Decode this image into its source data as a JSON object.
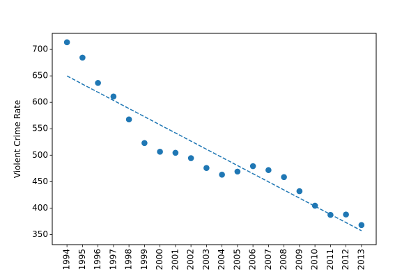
{
  "chart_data": {
    "type": "scatter",
    "title": "",
    "xlabel": "",
    "ylabel": "Violent Crime Rate",
    "x": [
      1994,
      1995,
      1996,
      1997,
      1998,
      1999,
      2000,
      2001,
      2002,
      2003,
      2004,
      2005,
      2006,
      2007,
      2008,
      2009,
      2010,
      2011,
      2012,
      2013
    ],
    "series": [
      {
        "type": "scatter",
        "values": [
          713.6,
          684.5,
          636.6,
          611.0,
          567.6,
          523.0,
          506.5,
          504.5,
          494.4,
          475.8,
          463.2,
          469.0,
          479.3,
          471.8,
          458.6,
          431.9,
          404.5,
          387.1,
          387.8,
          367.9
        ],
        "color": "#1f77b4",
        "marker": "circle"
      },
      {
        "type": "line",
        "style": "dashed",
        "values": [
          649.9,
          634.4,
          619.0,
          603.6,
          588.2,
          572.8,
          557.4,
          542.0,
          526.6,
          511.2,
          495.8,
          480.4,
          465.0,
          449.6,
          434.2,
          418.8,
          403.4,
          388.0,
          372.6,
          357.2
        ],
        "color": "#1f77b4"
      }
    ],
    "xticks": [
      "1994",
      "1995",
      "1996",
      "1997",
      "1998",
      "1999",
      "2000",
      "2001",
      "2002",
      "2003",
      "2004",
      "2005",
      "2006",
      "2007",
      "2008",
      "2009",
      "2010",
      "2011",
      "2012",
      "2013"
    ],
    "xtick_rotation": 90,
    "yticks": [
      350,
      400,
      450,
      500,
      550,
      600,
      650,
      700
    ],
    "xlim": [
      1993.05,
      2013.95
    ],
    "ylim": [
      330.8,
      730.4
    ],
    "grid": false,
    "legend": "none"
  }
}
